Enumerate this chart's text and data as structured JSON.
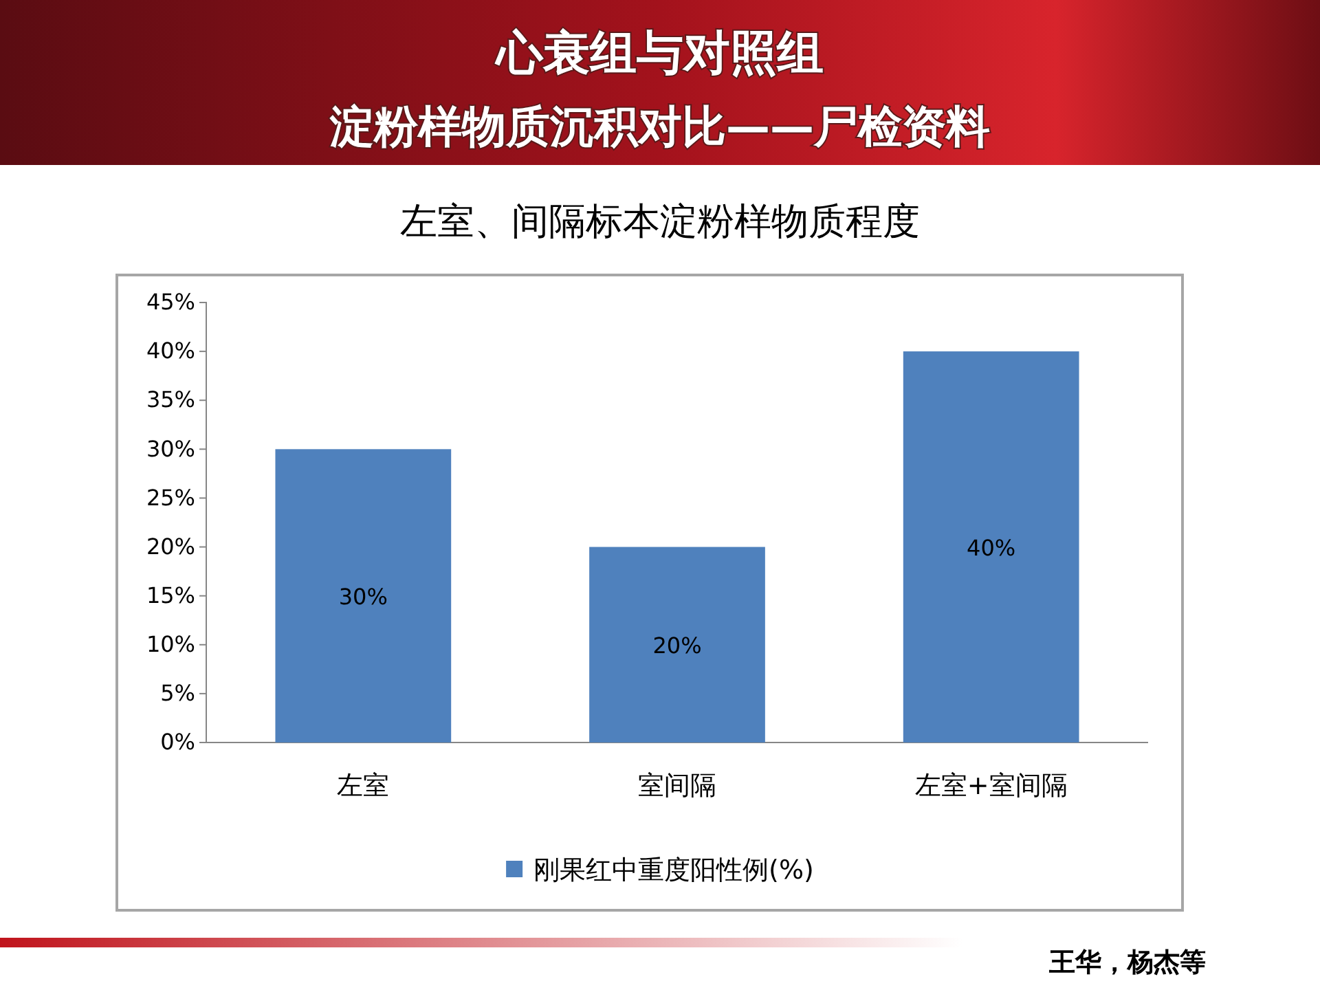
{
  "chart_data": {
    "type": "bar",
    "title": "心衰组与对照组",
    "subtitle": "淀粉样物质沉积对比——尸检资料",
    "annotations": [
      "左室、间隔标本淀粉样物质程度",
      "王华，杨杰等"
    ],
    "categories": [
      "左室",
      "室间隔",
      "左室+室间隔"
    ],
    "series": [
      {
        "name": "刚果红中重度阳性例(%)",
        "color": "#4f81bd",
        "values": [
          30,
          20,
          40
        ],
        "value_labels": [
          "30%",
          "20%",
          "40%"
        ]
      }
    ],
    "ylim": [
      0,
      45
    ],
    "yticks": [
      {
        "value": 0,
        "label": "0%"
      },
      {
        "value": 5,
        "label": "5%"
      },
      {
        "value": 10,
        "label": "10%"
      },
      {
        "value": 15,
        "label": "15%"
      },
      {
        "value": 20,
        "label": "20%"
      },
      {
        "value": 25,
        "label": "25%"
      },
      {
        "value": 30,
        "label": "30%"
      },
      {
        "value": 35,
        "label": "35%"
      },
      {
        "value": 40,
        "label": "40%"
      },
      {
        "value": 45,
        "label": "45%"
      }
    ],
    "grid": false,
    "legend": "bottom"
  }
}
